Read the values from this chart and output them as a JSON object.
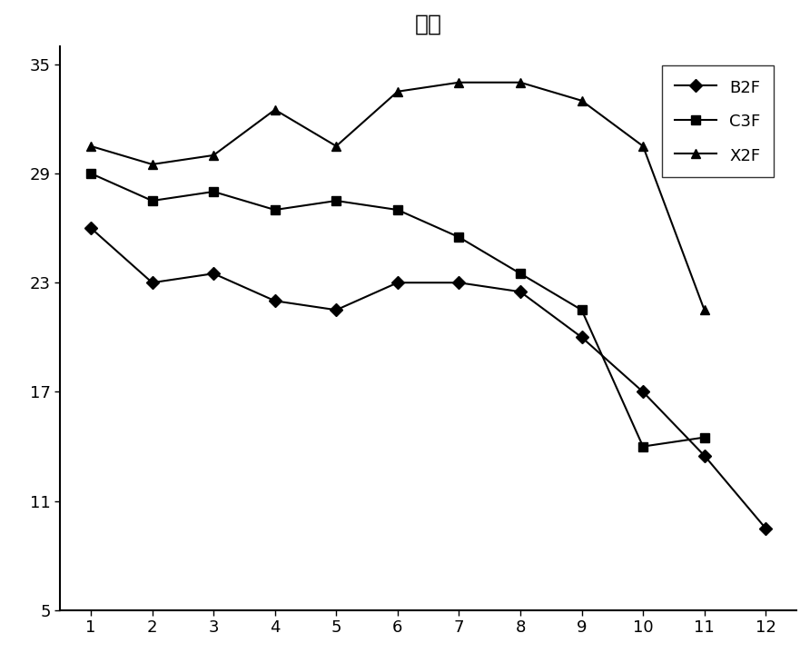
{
  "title": "总糖",
  "x": [
    1,
    2,
    3,
    4,
    5,
    6,
    7,
    8,
    9,
    10,
    11,
    12
  ],
  "B2F": [
    26.0,
    23.0,
    23.5,
    22.0,
    21.5,
    23.0,
    23.0,
    22.5,
    20.0,
    17.0,
    13.5,
    9.5
  ],
  "C3F": [
    29.0,
    27.5,
    28.0,
    27.0,
    27.5,
    27.0,
    25.5,
    23.5,
    21.5,
    14.0,
    14.5,
    null
  ],
  "X2F": [
    30.5,
    29.5,
    30.0,
    32.5,
    30.5,
    33.5,
    34.0,
    34.0,
    33.0,
    30.5,
    21.5,
    null
  ],
  "ylim": [
    5.0,
    36.0
  ],
  "yticks": [
    5.0,
    11.0,
    17.0,
    23.0,
    29.0,
    35.0
  ],
  "xlim": [
    0.5,
    12.5
  ],
  "xticks": [
    1,
    2,
    3,
    4,
    5,
    6,
    7,
    8,
    9,
    10,
    11,
    12
  ],
  "background_color": "#ffffff",
  "line_color": "#000000",
  "title_fontsize": 18,
  "legend_labels": [
    "B2F",
    "C3F",
    "X2F"
  ]
}
